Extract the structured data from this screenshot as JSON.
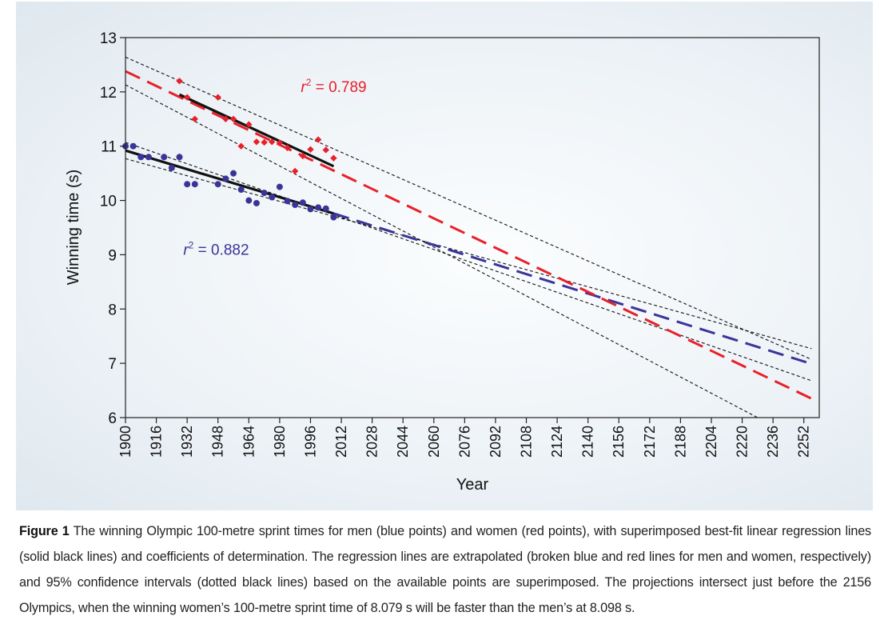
{
  "caption": {
    "label": "Figure 1",
    "text": "The winning Olympic 100-metre sprint times for men (blue points) and women (red points), with superimposed best-fit linear regression lines (solid black lines) and coefficients of determination. The regression lines are extrapolated (broken blue and red lines for men and women, respectively) and 95% confidence intervals (dotted black lines) based on the available points are superimposed. The projections intersect just before the 2156 Olympics, when the winning women’s 100-metre sprint time of 8.079 s will be faster than the men’s at 8.098 s."
  },
  "chart_data": {
    "type": "scatter",
    "xlabel": "Year",
    "ylabel": "Winning time (s)",
    "xlim": [
      1900,
      2260
    ],
    "ylim": [
      6,
      13
    ],
    "xticks": [
      1900,
      1916,
      1932,
      1948,
      1964,
      1980,
      1996,
      2012,
      2028,
      2044,
      2060,
      2076,
      2092,
      2108,
      2124,
      2140,
      2156,
      2172,
      2188,
      2204,
      2220,
      2236,
      2252
    ],
    "yticks": [
      6,
      7,
      8,
      9,
      10,
      11,
      12,
      13
    ],
    "grid": false,
    "annotations": [
      {
        "prefix": "r",
        "sup": "2",
        "text": " = 0.789",
        "color": "#e8202a",
        "at": [
          1991,
          12.0
        ]
      },
      {
        "prefix": "r",
        "sup": "2",
        "text": " = 0.882",
        "color": "#3a3499",
        "at": [
          1930,
          9.0
        ]
      }
    ],
    "series": [
      {
        "color": "#3a3499",
        "marker": "circle",
        "x": [
          1900,
          1904,
          1908,
          1912,
          1920,
          1924,
          1928,
          1932,
          1936,
          1948,
          1952,
          1956,
          1960,
          1964,
          1968,
          1972,
          1976,
          1980,
          1984,
          1988,
          1992,
          1996,
          2000,
          2004,
          2008
        ],
        "y": [
          11.0,
          11.0,
          10.8,
          10.8,
          10.8,
          10.6,
          10.8,
          10.3,
          10.3,
          10.3,
          10.4,
          10.5,
          10.2,
          10.0,
          9.95,
          10.14,
          10.06,
          10.25,
          9.99,
          9.92,
          9.96,
          9.84,
          9.87,
          9.85,
          9.69
        ],
        "fit": {
          "x": [
            1900,
            2008
          ],
          "y": [
            10.92,
            9.76
          ]
        },
        "extrapolation": {
          "x": [
            2008,
            2256
          ],
          "y": [
            9.76,
            6.99
          ]
        },
        "ci_lower": {
          "x": [
            1900,
            2256
          ],
          "y": [
            10.77,
            7.27
          ]
        },
        "ci_upper": {
          "x": [
            1900,
            2256
          ],
          "y": [
            11.07,
            6.68
          ]
        }
      },
      {
        "color": "#e8202a",
        "marker": "diamond",
        "x": [
          1928,
          1932,
          1936,
          1948,
          1952,
          1956,
          1960,
          1964,
          1968,
          1972,
          1976,
          1980,
          1984,
          1988,
          1992,
          1996,
          2000,
          2004,
          2008
        ],
        "y": [
          12.2,
          11.9,
          11.5,
          11.9,
          11.5,
          11.5,
          11.0,
          11.4,
          11.08,
          11.07,
          11.08,
          11.06,
          10.97,
          10.54,
          10.82,
          10.94,
          11.12,
          10.93,
          10.78
        ],
        "fit": {
          "x": [
            1928,
            2008
          ],
          "y": [
            11.95,
            10.63
          ]
        },
        "extrapolation": {
          "x": [
            1900,
            2256
          ],
          "y": [
            12.38,
            6.35
          ]
        },
        "ci_lower": {
          "x": [
            1900,
            2228
          ],
          "y": [
            12.13,
            6.0
          ]
        },
        "ci_upper": {
          "x": [
            1900,
            2256
          ],
          "y": [
            12.64,
            7.07
          ]
        }
      }
    ]
  }
}
